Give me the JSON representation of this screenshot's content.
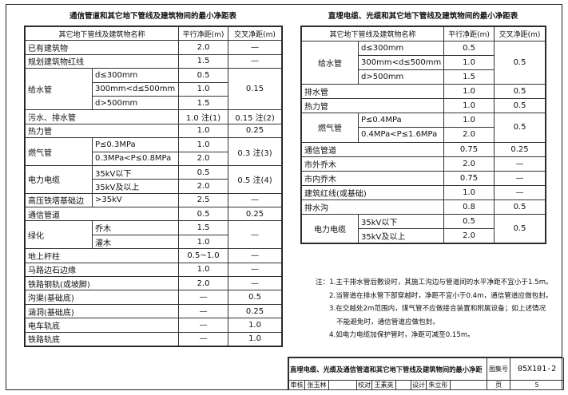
{
  "left_table": {
    "title": "通信管道和其它地下管线及建筑物间的最小净距表",
    "headers": [
      "其它地下管线及建筑物名称",
      "平行净距(m)",
      "交叉净距(m)"
    ],
    "rows": [
      {
        "name": "已有建筑物",
        "parallel": "2.0",
        "cross": "—"
      },
      {
        "name": "规划建筑物红线",
        "parallel": "1.5",
        "cross": "—"
      },
      {
        "name": "给水管",
        "sub": [
          "d≤300mm",
          "300mm<d≤500mm",
          "d>500mm"
        ],
        "parallel": [
          "0.5",
          "1.0",
          "1.5"
        ],
        "cross": "0.15"
      },
      {
        "name": "污水、排水管",
        "parallel": "1.0 注(1)",
        "cross": "0.15 注(2)"
      },
      {
        "name": "热力管",
        "parallel": "1.0",
        "cross": "0.25"
      },
      {
        "name": "燃气管",
        "sub": [
          "P≤0.3MPa",
          "0.3MPa<P≤0.8MPa"
        ],
        "parallel": [
          "1.0",
          "2.0"
        ],
        "cross": "0.3 注(3)"
      },
      {
        "name": "电力电缆",
        "sub": [
          "35kV以下",
          "35kV及以上"
        ],
        "parallel": [
          "0.5",
          "2.0"
        ],
        "cross": "0.5 注(4)"
      },
      {
        "name": "高压铁塔基础边",
        "sub": [
          ">35kV"
        ],
        "parallel": [
          "2.5"
        ],
        "cross": "—"
      },
      {
        "name": "通信管道",
        "parallel": "0.5",
        "cross": "0.25"
      },
      {
        "name": "绿化",
        "sub": [
          "乔木",
          "灌木"
        ],
        "parallel": [
          "1.5",
          "1.0"
        ],
        "cross": "—"
      },
      {
        "name": "地上杆柱",
        "parallel": "0.5~1.0",
        "cross": "—"
      },
      {
        "name": "马路边石边缘",
        "parallel": "1.0",
        "cross": "—"
      },
      {
        "name": "铁路钢轨(或坡脚)",
        "parallel": "2.0",
        "cross": "—"
      },
      {
        "name": "沟渠(基础底)",
        "parallel": "—",
        "cross": "0.5"
      },
      {
        "name": "涵洞(基础底)",
        "parallel": "—",
        "cross": "0.25"
      },
      {
        "name": "电车轨底",
        "parallel": "—",
        "cross": "1.0"
      },
      {
        "name": "铁路轨底",
        "parallel": "—",
        "cross": "1.0"
      }
    ]
  },
  "right_table": {
    "title": "直埋电缆、光缆和其它地下管线及建筑物间的最小净距表",
    "headers": [
      "其它地下管线及建筑物名称",
      "平行净距(m)",
      "交叉净距(m)"
    ],
    "rows": [
      {
        "name": "给水管",
        "sub": [
          "d≤300mm",
          "300mm<d≤500mm",
          "d>500mm"
        ],
        "parallel": [
          "0.5",
          "1.0",
          "1.5"
        ],
        "cross": "0.5"
      },
      {
        "name": "排水管",
        "parallel": "1.0",
        "cross": "0.5"
      },
      {
        "name": "热力管",
        "parallel": "1.0",
        "cross": "0.5"
      },
      {
        "name": "燃气管",
        "sub": [
          "P≤0.4MPa",
          "0.4MPa<P≤1.6MPa"
        ],
        "parallel": [
          "1.0",
          "2.0"
        ],
        "cross": "0.5"
      },
      {
        "name": "通信管道",
        "parallel": "0.75",
        "cross": "0.25"
      },
      {
        "name": "市外乔木",
        "parallel": "2.0",
        "cross": "—"
      },
      {
        "name": "市内乔木",
        "parallel": "0.75",
        "cross": "—"
      },
      {
        "name": "建筑红线(或基础)",
        "parallel": "1.0",
        "cross": "—"
      },
      {
        "name": "排水沟",
        "parallel": "0.8",
        "cross": "0.5"
      },
      {
        "name": "电力电缆",
        "sub": [
          "35kV以下",
          "35kV及以上"
        ],
        "parallel": [
          "0.5",
          "2.0"
        ],
        "cross": "0.5"
      }
    ]
  },
  "notes": {
    "label": "注：",
    "items": [
      "1.主干排水管后敷设时，其施工沟边与管道间的水平净距不宜小于1.5m。",
      "2.当管道在排水管下部穿越时，净距不宜小于0.4m，通信管道应做包封。",
      "3.在交越处2m范围内，煤气管不应做接合装置和附属设备；如上述情况",
      "不能避免时，通信管道应做包封。",
      "4.如电力电缆加保护管时，净距可减至0.15m。"
    ]
  },
  "title_block": {
    "title": "直埋电缆、光缆及通信管道和其它地下管线及建筑物间的最小净距",
    "atlas_label": "图集号",
    "atlas_no": "05X101-2",
    "review_label": "审核",
    "reviewer": "张玉林",
    "reviewer_sig": "张玉林",
    "check_label": "校对",
    "checker": "王素英",
    "checker_sig": "王素英",
    "design_label": "设计",
    "designer": "朱立彤",
    "designer_sig": "朱立彤",
    "page_label": "页",
    "page": "5"
  }
}
